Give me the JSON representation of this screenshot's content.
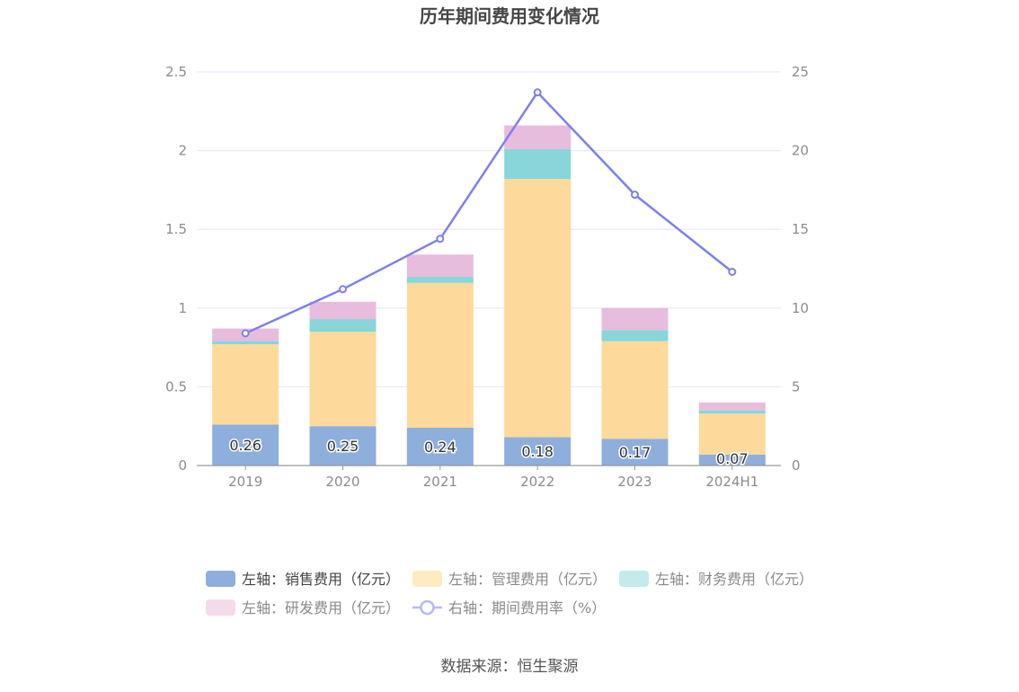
{
  "chart_data": {
    "type": "bar",
    "stacked": true,
    "title": "历年期间费用变化情况",
    "categories": [
      "2019",
      "2020",
      "2021",
      "2022",
      "2023",
      "2024H1"
    ],
    "left_axis": {
      "ylim": [
        0,
        2.5
      ],
      "ticks": [
        "0",
        "0.5",
        "1",
        "1.5",
        "2",
        "2.5"
      ]
    },
    "right_axis": {
      "ylim": [
        0,
        25
      ],
      "ticks": [
        "0",
        "5",
        "10",
        "15",
        "20",
        "25"
      ]
    },
    "series": [
      {
        "name": "左轴：销售费用（亿元）",
        "type": "bar",
        "axis": "left",
        "color": "#8eaedc",
        "values": [
          0.26,
          0.25,
          0.24,
          0.18,
          0.17,
          0.07
        ]
      },
      {
        "name": "左轴：管理费用（亿元）",
        "type": "bar",
        "axis": "left",
        "color": "#fed99c",
        "values": [
          0.51,
          0.6,
          0.92,
          1.64,
          0.62,
          0.26
        ]
      },
      {
        "name": "左轴：财务费用（亿元）",
        "type": "bar",
        "axis": "left",
        "color": "#88d5da",
        "values": [
          0.02,
          0.08,
          0.04,
          0.19,
          0.07,
          0.02
        ]
      },
      {
        "name": "左轴：研发费用（亿元）",
        "type": "bar",
        "axis": "left",
        "color": "#e8bcdd",
        "values": [
          0.08,
          0.11,
          0.14,
          0.15,
          0.14,
          0.05
        ]
      },
      {
        "name": "右轴：期间费用率（%）",
        "type": "line",
        "axis": "right",
        "color": "#7f80ec",
        "values": [
          8.4,
          11.2,
          14.4,
          23.7,
          17.2,
          12.3
        ]
      }
    ],
    "data_labels": [
      "0.26",
      "0.25",
      "0.24",
      "0.18",
      "0.17",
      "0.07"
    ],
    "grid": true,
    "legend_position": "bottom"
  },
  "source": "数据来源：恒生聚源"
}
